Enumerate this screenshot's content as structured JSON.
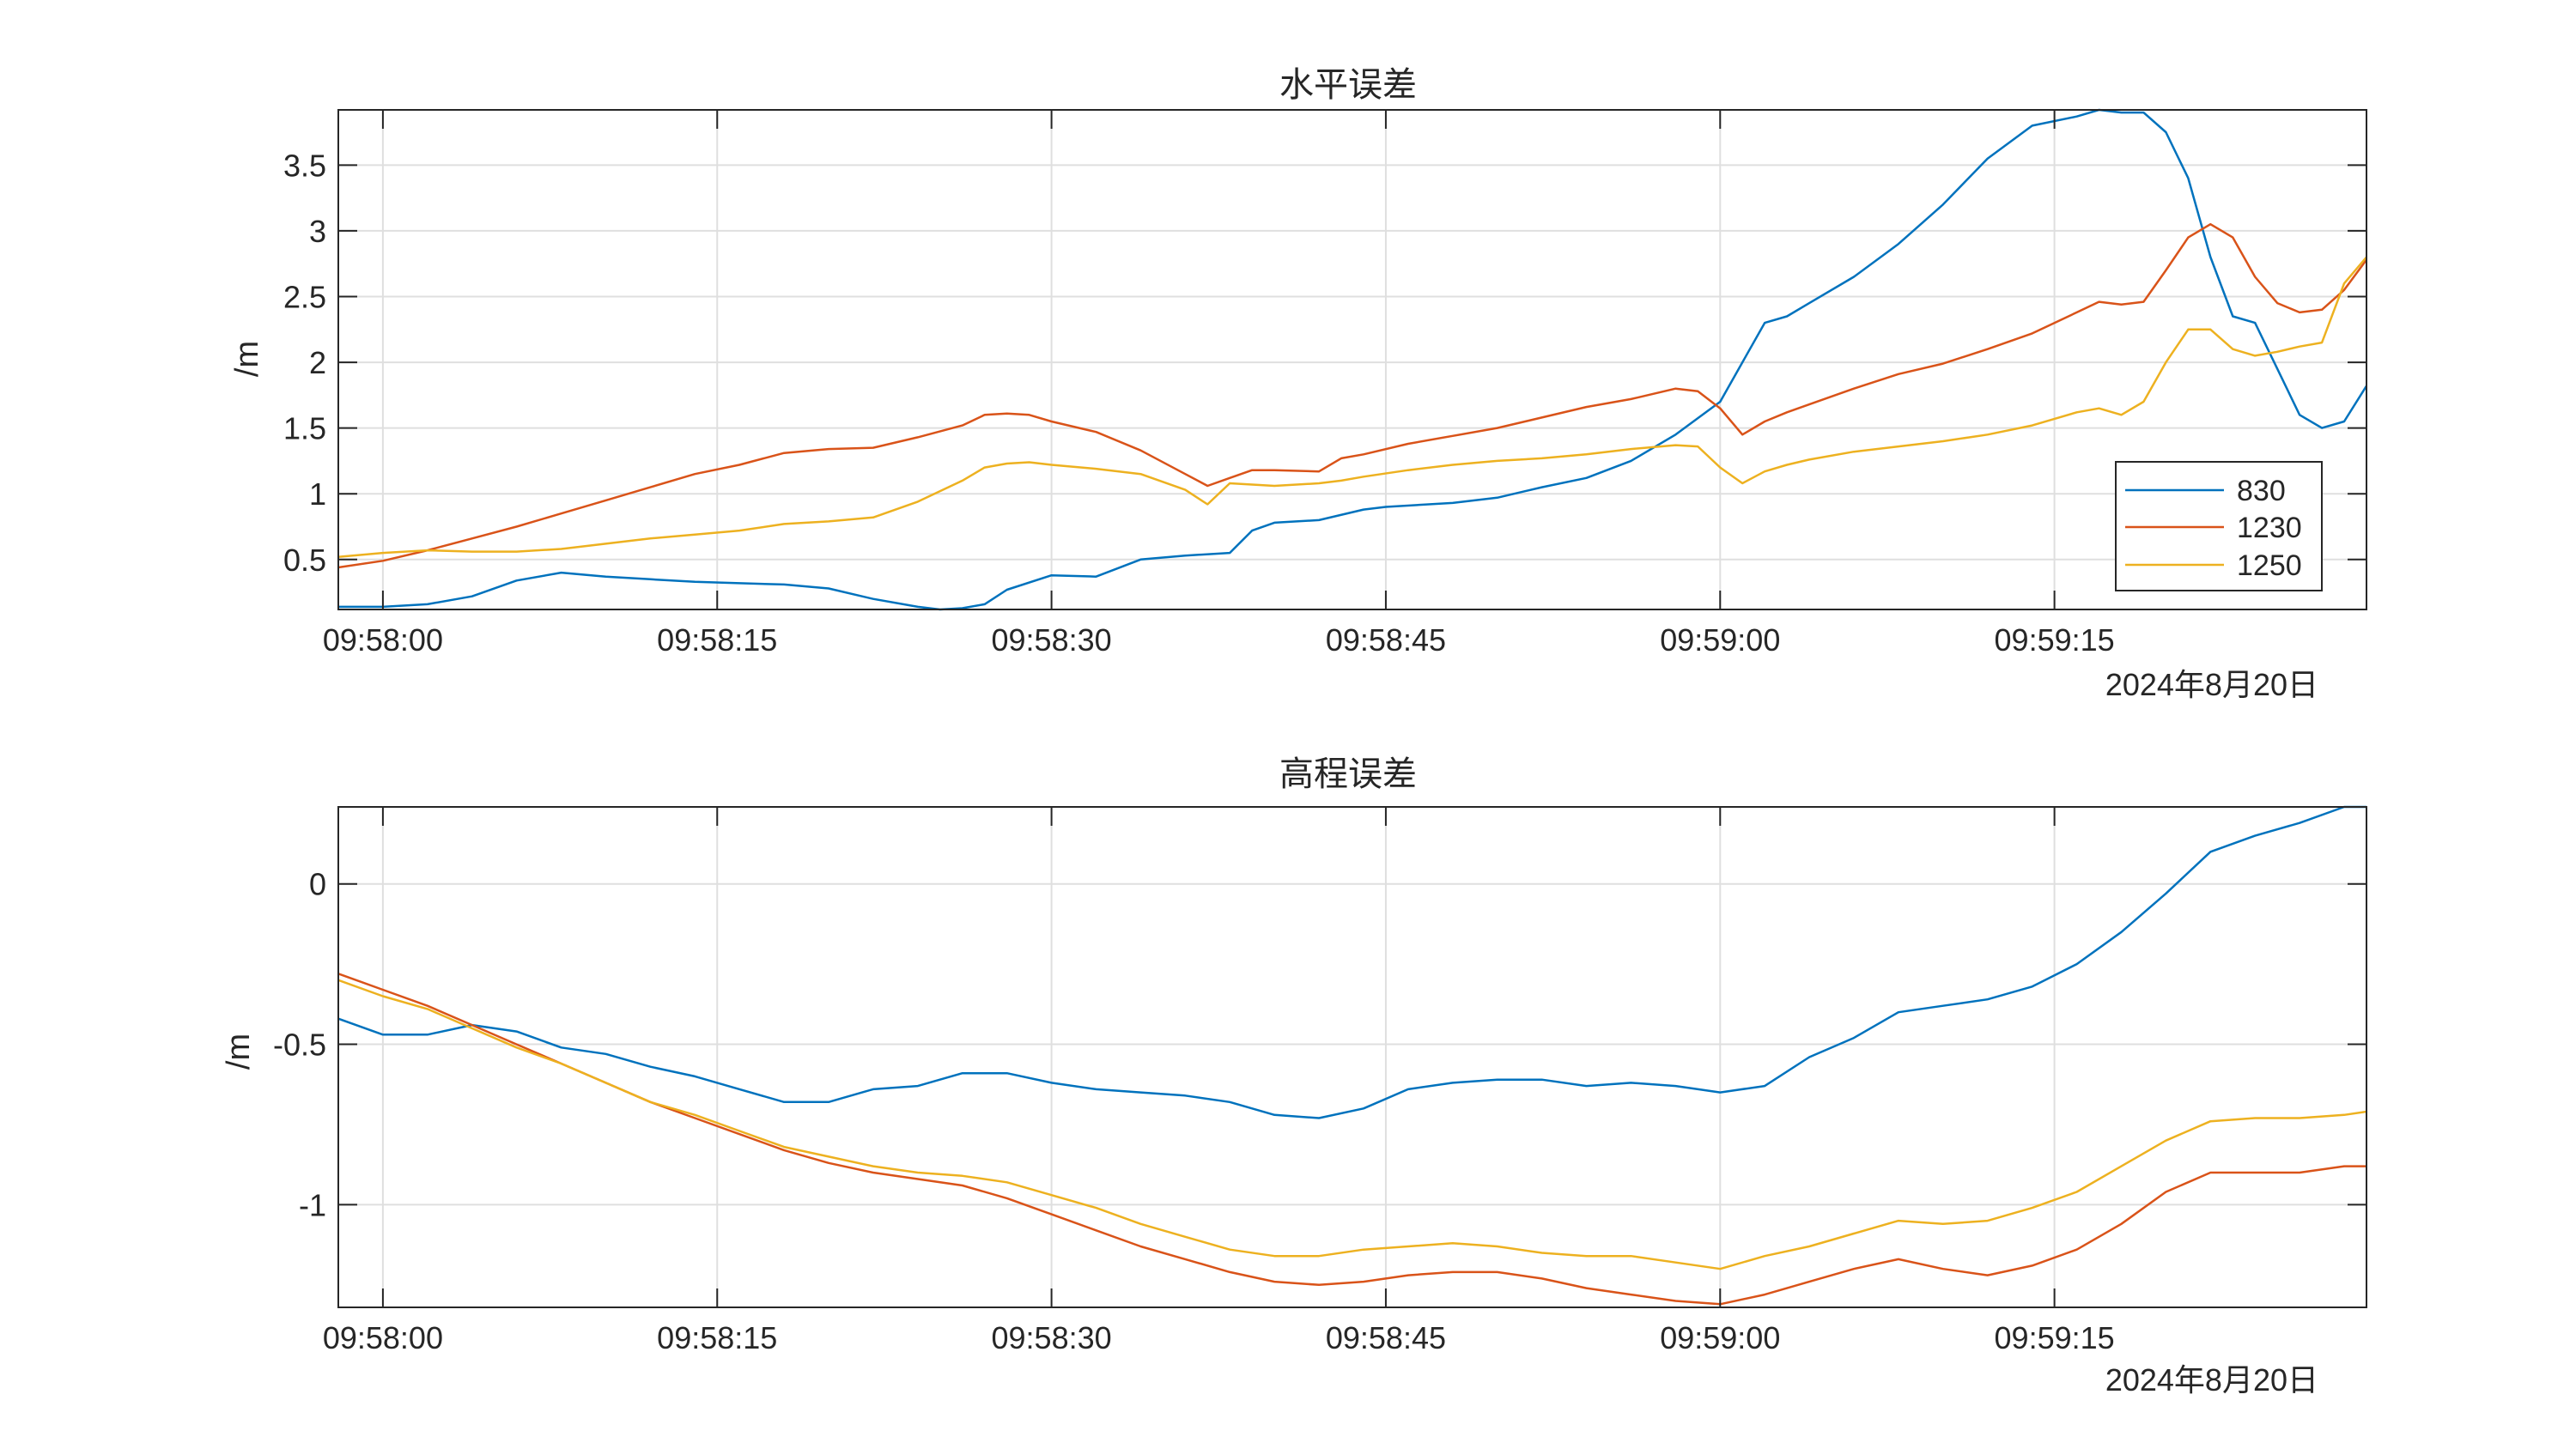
{
  "chart_data": [
    {
      "type": "line",
      "title": "水平误差",
      "ylabel": "/m",
      "xlabel": "",
      "x_unit": "seconds after 09:58:00",
      "xlim": [
        -2,
        89
      ],
      "ylim": [
        0.12,
        3.92
      ],
      "x_ticks": [
        0,
        15,
        30,
        45,
        60,
        75
      ],
      "x_tick_labels": [
        "09:58:00",
        "09:58:15",
        "09:58:30",
        "09:58:45",
        "09:59:00",
        "09:59:15"
      ],
      "y_ticks": [
        0.5,
        1,
        1.5,
        2,
        2.5,
        3,
        3.5
      ],
      "y_tick_labels": [
        "0.5",
        "1",
        "1.5",
        "2",
        "2.5",
        "3",
        "3.5"
      ],
      "date_label": "2024年8月20日",
      "grid": true,
      "legend": "bottom-right",
      "series": [
        {
          "name": "830",
          "color": "#0072BD",
          "x": [
            -2,
            0,
            2,
            4,
            6,
            8,
            10,
            12,
            14,
            16,
            18,
            20,
            22,
            24,
            25,
            26,
            27,
            28,
            30,
            32,
            34,
            36,
            38,
            39,
            40,
            42,
            44,
            45,
            48,
            50,
            52,
            54,
            56,
            58,
            60,
            61,
            62,
            63,
            64,
            66,
            68,
            70,
            72,
            74,
            76,
            77,
            78,
            79,
            80,
            81,
            82,
            83,
            84,
            85,
            86,
            87,
            88,
            89
          ],
          "y": [
            0.14,
            0.14,
            0.16,
            0.22,
            0.34,
            0.4,
            0.37,
            0.35,
            0.33,
            0.32,
            0.31,
            0.28,
            0.2,
            0.14,
            0.12,
            0.13,
            0.16,
            0.27,
            0.38,
            0.37,
            0.5,
            0.53,
            0.55,
            0.72,
            0.78,
            0.8,
            0.88,
            0.9,
            0.93,
            0.97,
            1.05,
            1.12,
            1.25,
            1.45,
            1.7,
            2.0,
            2.3,
            2.35,
            2.45,
            2.65,
            2.9,
            3.2,
            3.55,
            3.8,
            3.87,
            3.92,
            3.9,
            3.9,
            3.75,
            3.4,
            2.8,
            2.35,
            2.3,
            1.95,
            1.6,
            1.5,
            1.55,
            1.82
          ]
        },
        {
          "name": "1230",
          "color": "#D95319",
          "x": [
            -2,
            0,
            2,
            4,
            6,
            8,
            10,
            12,
            14,
            16,
            18,
            20,
            22,
            24,
            26,
            27,
            28,
            29,
            30,
            32,
            34,
            36,
            37,
            38,
            39,
            40,
            42,
            43,
            44,
            46,
            48,
            50,
            52,
            54,
            56,
            58,
            59,
            60,
            61,
            62,
            63,
            64,
            66,
            68,
            70,
            72,
            74,
            76,
            77,
            78,
            79,
            80,
            81,
            82,
            83,
            84,
            85,
            86,
            87,
            88,
            89
          ],
          "y": [
            0.44,
            0.49,
            0.57,
            0.66,
            0.75,
            0.85,
            0.95,
            1.05,
            1.15,
            1.22,
            1.31,
            1.34,
            1.35,
            1.43,
            1.52,
            1.6,
            1.61,
            1.6,
            1.55,
            1.47,
            1.33,
            1.15,
            1.06,
            1.12,
            1.18,
            1.18,
            1.17,
            1.27,
            1.3,
            1.38,
            1.44,
            1.5,
            1.58,
            1.66,
            1.72,
            1.8,
            1.78,
            1.65,
            1.45,
            1.55,
            1.62,
            1.68,
            1.8,
            1.91,
            1.99,
            2.1,
            2.22,
            2.38,
            2.46,
            2.44,
            2.46,
            2.7,
            2.95,
            3.05,
            2.95,
            2.65,
            2.45,
            2.38,
            2.4,
            2.55,
            2.78
          ]
        },
        {
          "name": "1250",
          "color": "#EDB120",
          "x": [
            -2,
            0,
            2,
            4,
            6,
            8,
            10,
            12,
            14,
            16,
            18,
            20,
            22,
            24,
            26,
            27,
            28,
            29,
            30,
            32,
            34,
            36,
            37,
            38,
            39,
            40,
            42,
            43,
            44,
            46,
            48,
            50,
            52,
            54,
            56,
            58,
            59,
            60,
            61,
            62,
            63,
            64,
            66,
            68,
            70,
            72,
            74,
            76,
            77,
            78,
            79,
            80,
            81,
            82,
            83,
            84,
            85,
            86,
            87,
            88,
            89
          ],
          "y": [
            0.52,
            0.55,
            0.57,
            0.56,
            0.56,
            0.58,
            0.62,
            0.66,
            0.69,
            0.72,
            0.77,
            0.79,
            0.82,
            0.94,
            1.1,
            1.2,
            1.23,
            1.24,
            1.22,
            1.19,
            1.15,
            1.03,
            0.92,
            1.08,
            1.07,
            1.06,
            1.08,
            1.1,
            1.13,
            1.18,
            1.22,
            1.25,
            1.27,
            1.3,
            1.34,
            1.37,
            1.36,
            1.2,
            1.08,
            1.17,
            1.22,
            1.26,
            1.32,
            1.36,
            1.4,
            1.45,
            1.52,
            1.62,
            1.65,
            1.6,
            1.7,
            2.0,
            2.25,
            2.25,
            2.1,
            2.05,
            2.08,
            2.12,
            2.15,
            2.6,
            2.8
          ]
        }
      ]
    },
    {
      "type": "line",
      "title": "高程误差",
      "ylabel": "/m",
      "xlabel": "",
      "x_unit": "seconds after 09:58:00",
      "xlim": [
        -2,
        89
      ],
      "ylim": [
        -1.32,
        0.24
      ],
      "x_ticks": [
        0,
        15,
        30,
        45,
        60,
        75
      ],
      "x_tick_labels": [
        "09:58:00",
        "09:58:15",
        "09:58:30",
        "09:58:45",
        "09:59:00",
        "09:59:15"
      ],
      "y_ticks": [
        -1,
        -0.5,
        0
      ],
      "y_tick_labels": [
        "-1",
        "-0.5",
        "0"
      ],
      "date_label": "2024年8月20日",
      "grid": true,
      "series": [
        {
          "color": "#0072BD",
          "x": [
            -2,
            0,
            2,
            4,
            6,
            8,
            10,
            12,
            14,
            16,
            18,
            20,
            22,
            24,
            26,
            28,
            30,
            32,
            34,
            36,
            38,
            40,
            42,
            44,
            46,
            48,
            50,
            52,
            54,
            56,
            58,
            60,
            62,
            64,
            66,
            68,
            70,
            72,
            74,
            76,
            78,
            80,
            82,
            84,
            86,
            88,
            89
          ],
          "y": [
            -0.42,
            -0.47,
            -0.47,
            -0.44,
            -0.46,
            -0.51,
            -0.53,
            -0.57,
            -0.6,
            -0.64,
            -0.68,
            -0.68,
            -0.64,
            -0.63,
            -0.59,
            -0.59,
            -0.62,
            -0.64,
            -0.65,
            -0.66,
            -0.68,
            -0.72,
            -0.73,
            -0.7,
            -0.64,
            -0.62,
            -0.61,
            -0.61,
            -0.63,
            -0.62,
            -0.63,
            -0.65,
            -0.63,
            -0.54,
            -0.48,
            -0.4,
            -0.38,
            -0.36,
            -0.32,
            -0.25,
            -0.15,
            -0.03,
            0.1,
            0.15,
            0.19,
            0.24,
            0.24
          ]
        },
        {
          "color": "#D95319",
          "x": [
            -2,
            0,
            2,
            4,
            6,
            8,
            10,
            12,
            14,
            16,
            18,
            20,
            22,
            24,
            26,
            28,
            30,
            32,
            34,
            36,
            38,
            40,
            42,
            44,
            46,
            48,
            50,
            52,
            54,
            56,
            58,
            60,
            62,
            64,
            66,
            68,
            70,
            72,
            74,
            76,
            78,
            80,
            82,
            84,
            86,
            88,
            89
          ],
          "y": [
            -0.28,
            -0.33,
            -0.38,
            -0.44,
            -0.5,
            -0.56,
            -0.62,
            -0.68,
            -0.73,
            -0.78,
            -0.83,
            -0.87,
            -0.9,
            -0.92,
            -0.94,
            -0.98,
            -1.03,
            -1.08,
            -1.13,
            -1.17,
            -1.21,
            -1.24,
            -1.25,
            -1.24,
            -1.22,
            -1.21,
            -1.21,
            -1.23,
            -1.26,
            -1.28,
            -1.3,
            -1.31,
            -1.28,
            -1.24,
            -1.2,
            -1.17,
            -1.2,
            -1.22,
            -1.19,
            -1.14,
            -1.06,
            -0.96,
            -0.9,
            -0.9,
            -0.9,
            -0.88,
            -0.88
          ]
        },
        {
          "color": "#EDB120",
          "x": [
            -2,
            0,
            2,
            4,
            6,
            8,
            10,
            12,
            14,
            16,
            18,
            20,
            22,
            24,
            26,
            28,
            30,
            32,
            34,
            36,
            38,
            40,
            42,
            44,
            46,
            48,
            50,
            52,
            54,
            56,
            58,
            60,
            62,
            64,
            66,
            68,
            70,
            72,
            74,
            76,
            78,
            80,
            82,
            84,
            86,
            88,
            89
          ],
          "y": [
            -0.3,
            -0.35,
            -0.39,
            -0.45,
            -0.51,
            -0.56,
            -0.62,
            -0.68,
            -0.72,
            -0.77,
            -0.82,
            -0.85,
            -0.88,
            -0.9,
            -0.91,
            -0.93,
            -0.97,
            -1.01,
            -1.06,
            -1.1,
            -1.14,
            -1.16,
            -1.16,
            -1.14,
            -1.13,
            -1.12,
            -1.13,
            -1.15,
            -1.16,
            -1.16,
            -1.18,
            -1.2,
            -1.16,
            -1.13,
            -1.09,
            -1.05,
            -1.06,
            -1.05,
            -1.01,
            -0.96,
            -0.88,
            -0.8,
            -0.74,
            -0.73,
            -0.73,
            -0.72,
            -0.71
          ]
        }
      ]
    }
  ]
}
